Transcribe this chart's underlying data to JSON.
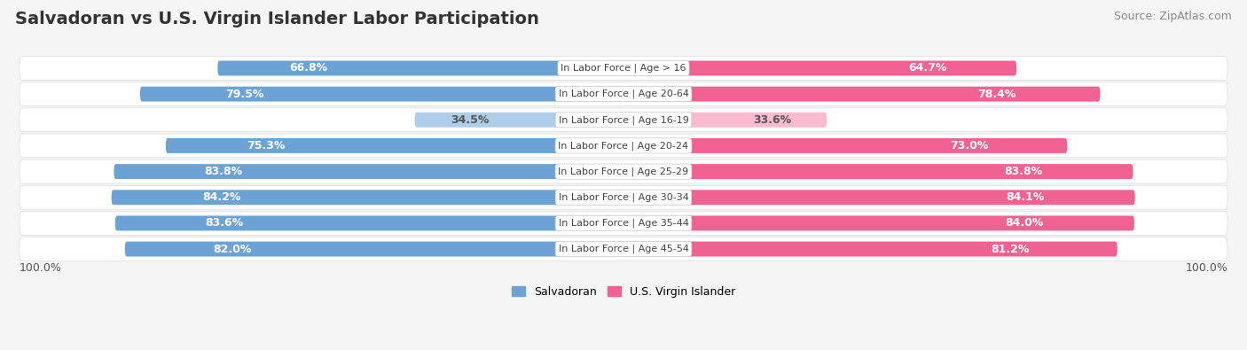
{
  "title": "Salvadoran vs U.S. Virgin Islander Labor Participation",
  "source": "Source: ZipAtlas.com",
  "categories": [
    "In Labor Force | Age > 16",
    "In Labor Force | Age 20-64",
    "In Labor Force | Age 16-19",
    "In Labor Force | Age 20-24",
    "In Labor Force | Age 25-29",
    "In Labor Force | Age 30-34",
    "In Labor Force | Age 35-44",
    "In Labor Force | Age 45-54"
  ],
  "salvadoran_values": [
    66.8,
    79.5,
    34.5,
    75.3,
    83.8,
    84.2,
    83.6,
    82.0
  ],
  "virgin_islander_values": [
    64.7,
    78.4,
    33.6,
    73.0,
    83.8,
    84.1,
    84.0,
    81.2
  ],
  "sal_color_dark": "#6BA3D6",
  "sal_color_light": "#AECDE8",
  "vi_color_dark": "#F06292",
  "vi_color_light": "#F8BBD0",
  "row_bg": "#FFFFFF",
  "fig_bg": "#F5F5F5",
  "legend_labels": [
    "Salvadoran",
    "U.S. Virgin Islander"
  ],
  "x_label": "100.0%",
  "title_fontsize": 14,
  "source_fontsize": 9,
  "bar_label_fontsize": 9,
  "category_fontsize": 8,
  "legend_fontsize": 9,
  "max_val": 100.0
}
